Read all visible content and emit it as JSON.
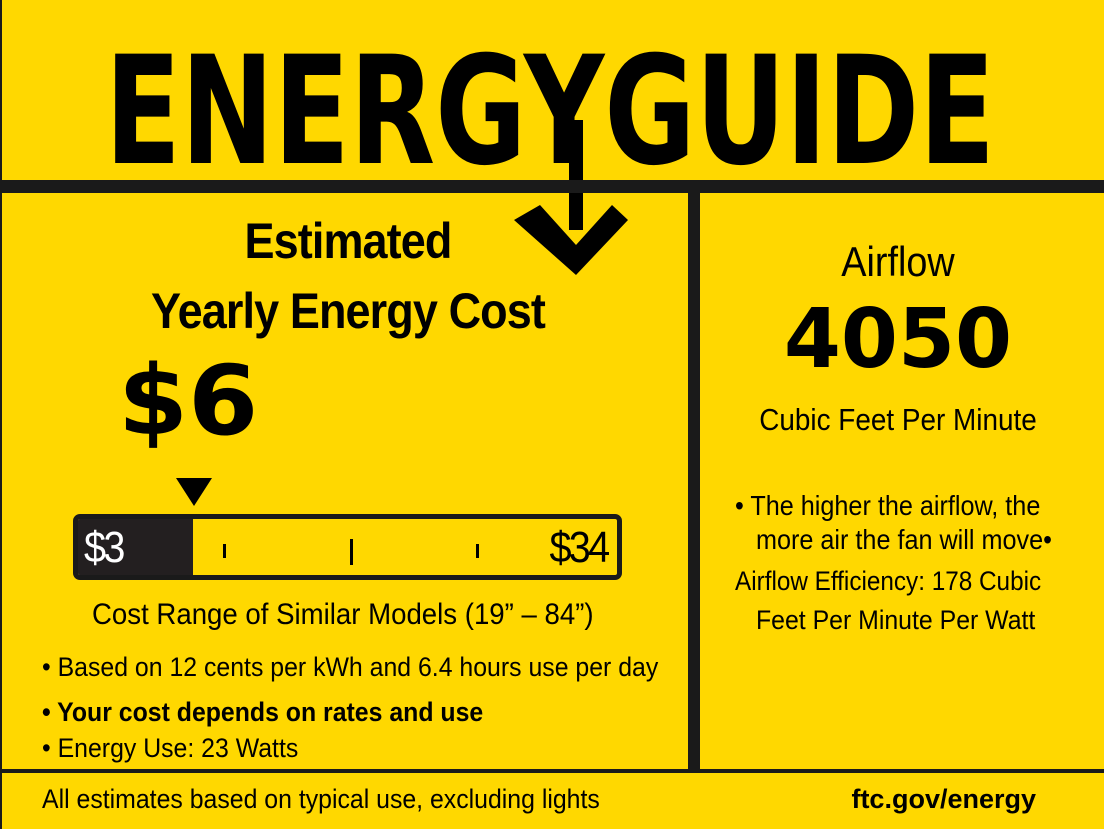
{
  "header": {
    "title": "ENERGYGUIDE"
  },
  "cost": {
    "heading_line1": "Estimated",
    "heading_line2": "Yearly Energy Cost",
    "value": "$6",
    "range_low": "$3",
    "range_high": "$34",
    "indicator_fraction": 0.097,
    "range_caption": "Cost Range of Similar Models (19” – 84”)",
    "note1": "• Based on 12 cents per kWh and 6.4 hours use per day",
    "note2": "• Your cost depends on rates and use",
    "note3": "• Energy Use: 23 Watts"
  },
  "airflow": {
    "heading": "Airflow",
    "value": "4050",
    "unit": "Cubic Feet Per Minute",
    "note_line1": "• The higher the airflow, the",
    "note_line2": "more air the fan will move•",
    "efficiency_line1": "Airflow Efficiency: 178 Cubic",
    "efficiency_line2": "Feet Per Minute Per Watt"
  },
  "footer": {
    "left": "All estimates based on typical use, excluding lights",
    "right": "ftc.gov/energy"
  },
  "colors": {
    "background": "#FFD800",
    "ink": "#1a1a1a"
  }
}
